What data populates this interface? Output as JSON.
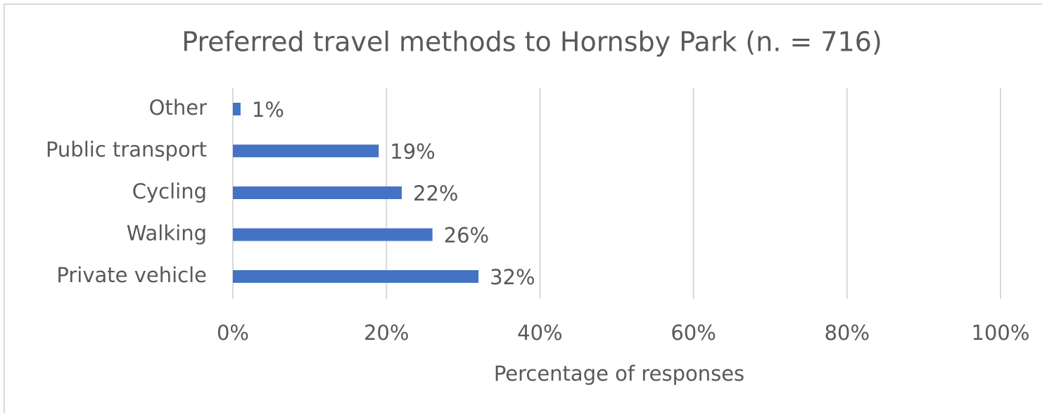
{
  "chart_data": {
    "type": "bar",
    "orientation": "horizontal",
    "title": "Preferred travel methods to Hornsby Park (n. = 716)",
    "x_label": "Percentage of responses",
    "categories": [
      "Other",
      "Public transport",
      "Cycling",
      "Walking",
      "Private vehicle"
    ],
    "values": [
      1,
      19,
      22,
      26,
      32
    ],
    "value_labels": [
      "1%",
      "19%",
      "22%",
      "26%",
      "32%"
    ],
    "color": "#4472c4",
    "xlim": [
      0,
      100
    ],
    "xticks": [
      {
        "value": 0,
        "label": "0%"
      },
      {
        "value": 20,
        "label": "20%"
      },
      {
        "value": 40,
        "label": "40%"
      },
      {
        "value": 60,
        "label": "60%"
      },
      {
        "value": 80,
        "label": "80%"
      },
      {
        "value": 100,
        "label": "100%"
      }
    ],
    "grid": true
  }
}
